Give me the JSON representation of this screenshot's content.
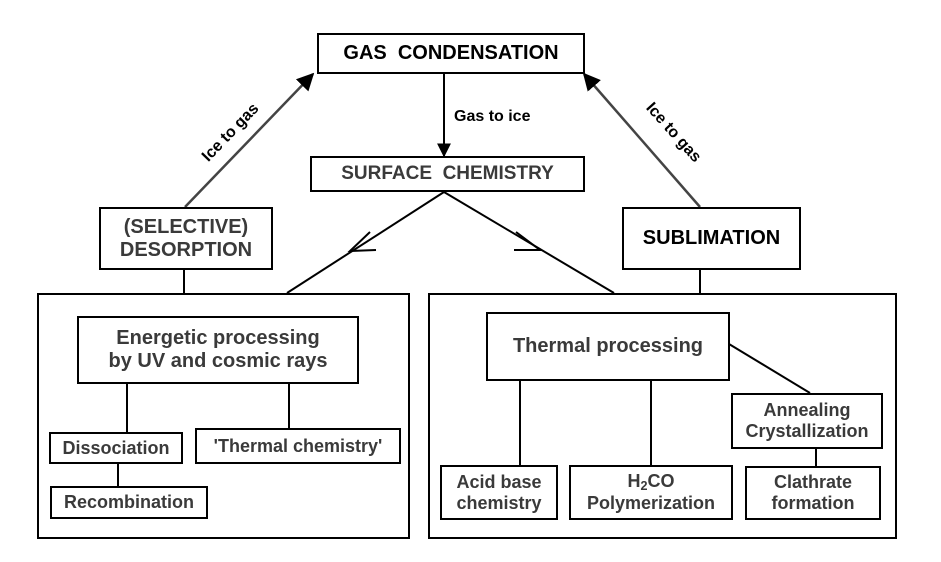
{
  "title": "GAS  CONDENSATION",
  "surface": "SURFACE  CHEMISTRY",
  "gas_to_ice": "Gas to ice",
  "ice_to_gas_left": "Ice to gas",
  "ice_to_gas_right": "Ice to gas",
  "desorption": {
    "line1": "(SELECTIVE)",
    "line2": "DESORPTION"
  },
  "sublimation": "SUBLIMATION",
  "energetic": {
    "line1": "Energetic processing",
    "line2": "by UV and cosmic rays"
  },
  "dissociation": "Dissociation",
  "recombination": "Recombination",
  "thermal_chemistry": "'Thermal chemistry'",
  "thermal_processing": "Thermal processing",
  "annealing": {
    "line1": "Annealing",
    "line2": "Crystallization"
  },
  "acid_base": {
    "line1": "Acid base",
    "line2": "chemistry"
  },
  "h2co": {
    "h": "H",
    "sub": "2",
    "co": "CO",
    "line2": "Polymerization"
  },
  "clathrate": {
    "line1": "Clathrate",
    "line2": "formation"
  }
}
